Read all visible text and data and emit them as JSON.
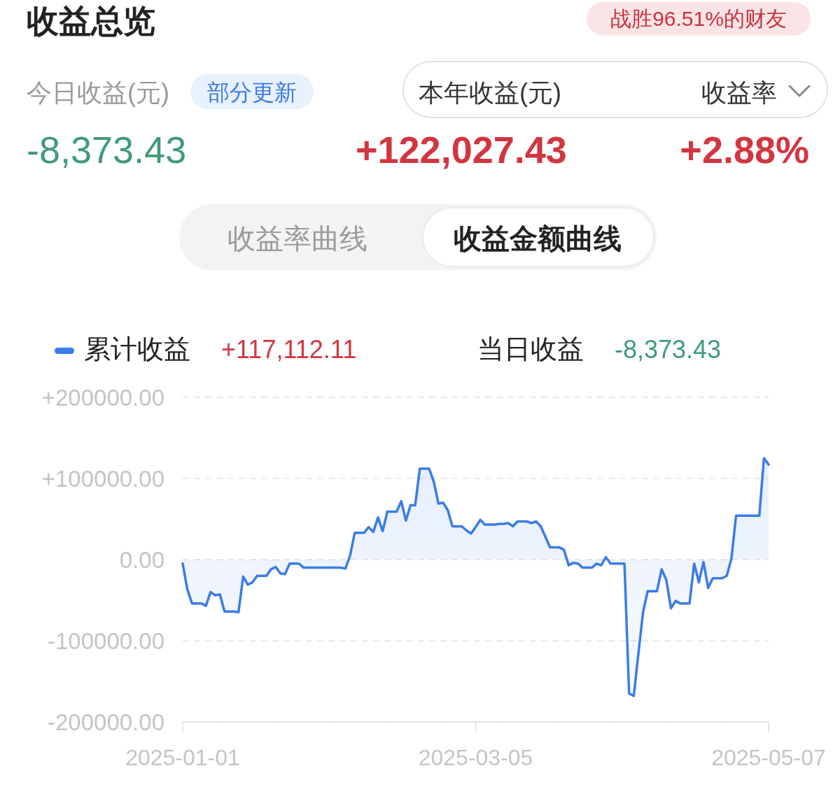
{
  "chart_data": {
    "type": "area",
    "title": "收益总览",
    "annotations": [
      "战胜96.51%的财友",
      "今日收益(元)",
      "部分更新",
      "本年收益(元)",
      "收益率",
      "-8,373.43",
      "+122,027.43",
      "+2.88%",
      "收益率曲线",
      "收益金额曲线",
      "+117,112.11",
      "当日收益",
      "-8,373.43"
    ],
    "x": [
      "2025-01-01",
      "2025-01-02",
      "2025-01-03",
      "2025-01-05",
      "2025-01-06",
      "2025-01-07",
      "2025-01-08",
      "2025-01-09",
      "2025-01-10",
      "2025-01-12",
      "2025-01-13",
      "2025-01-14",
      "2025-01-15",
      "2025-01-16",
      "2025-01-17",
      "2025-01-19",
      "2025-01-20",
      "2025-01-21",
      "2025-01-22",
      "2025-01-23",
      "2025-01-24",
      "2025-01-26",
      "2025-01-27",
      "2025-02-04",
      "2025-02-05",
      "2025-02-06",
      "2025-02-07",
      "2025-02-09",
      "2025-02-10",
      "2025-02-11",
      "2025-02-12",
      "2025-02-13",
      "2025-02-14",
      "2025-02-16",
      "2025-02-17",
      "2025-02-18",
      "2025-02-19",
      "2025-02-20",
      "2025-02-21",
      "2025-02-23",
      "2025-02-24",
      "2025-02-25",
      "2025-02-26",
      "2025-02-27",
      "2025-02-28",
      "2025-03-02",
      "2025-03-03",
      "2025-03-04",
      "2025-03-05",
      "2025-03-06",
      "2025-03-07",
      "2025-03-09",
      "2025-03-10",
      "2025-03-11",
      "2025-03-12",
      "2025-03-13",
      "2025-03-14",
      "2025-03-16",
      "2025-03-17",
      "2025-03-18",
      "2025-03-19",
      "2025-03-20",
      "2025-03-21",
      "2025-03-23",
      "2025-03-24",
      "2025-03-25",
      "2025-03-26",
      "2025-03-27",
      "2025-03-28",
      "2025-03-30",
      "2025-03-31",
      "2025-04-01",
      "2025-04-02",
      "2025-04-03",
      "2025-04-06",
      "2025-04-07",
      "2025-04-08",
      "2025-04-09",
      "2025-04-10",
      "2025-04-11",
      "2025-04-13",
      "2025-04-14",
      "2025-04-15",
      "2025-04-16",
      "2025-04-17",
      "2025-04-18",
      "2025-04-20",
      "2025-04-21",
      "2025-04-22",
      "2025-04-23",
      "2025-04-24",
      "2025-04-25",
      "2025-04-27",
      "2025-04-28",
      "2025-04-29",
      "2025-04-30",
      "2025-05-05",
      "2025-05-06",
      "2025-05-07"
    ],
    "series": [
      {
        "name": "累计收益",
        "color": "#3a7ce8",
        "values": [
          -5000,
          -37000,
          -54000,
          -54000,
          -57000,
          -40000,
          -44000,
          -43000,
          -64000,
          -64000,
          -65000,
          -21000,
          -31000,
          -28000,
          -20000,
          -20000,
          -12000,
          -9000,
          -17000,
          -18000,
          -5000,
          -5000,
          -10000,
          -10000,
          -11000,
          5000,
          33000,
          33000,
          40000,
          34000,
          52000,
          35000,
          59000,
          59000,
          72000,
          48000,
          67000,
          67000,
          112000,
          112000,
          96000,
          69000,
          70000,
          61000,
          41000,
          41000,
          36000,
          32000,
          40000,
          49000,
          43000,
          43000,
          44000,
          44000,
          45000,
          41000,
          47000,
          47000,
          45000,
          47000,
          41000,
          28000,
          15000,
          15000,
          12000,
          -7000,
          -4000,
          -5000,
          -10000,
          -10000,
          -5000,
          -7000,
          3000,
          -5000,
          -5000,
          -165000,
          -168000,
          -116000,
          -65000,
          -39000,
          -39000,
          -12000,
          -25000,
          -60000,
          -51000,
          -54000,
          -54000,
          -5000,
          -28000,
          -3000,
          -35000,
          -23000,
          -23000,
          -20000,
          1000,
          54000,
          54000,
          125000,
          117112.11
        ]
      }
    ],
    "xlim": [
      "2025-01-01",
      "2025-05-07"
    ],
    "xticks": [
      {
        "value": "2025-01-01",
        "label": "2025-01-01"
      },
      {
        "value": "2025-03-05",
        "label": "2025-03-05"
      },
      {
        "value": "2025-05-07",
        "label": "2025-05-07"
      }
    ],
    "ylim": [
      -200000,
      200000
    ],
    "yticks": [
      {
        "value": 200000,
        "label": "+200000.00"
      },
      {
        "value": 100000,
        "label": "+100000.00"
      },
      {
        "value": 0,
        "label": "0.00"
      },
      {
        "value": -100000,
        "label": "-100000.00"
      },
      {
        "value": -200000,
        "label": "-200000.00"
      }
    ],
    "grid": "y",
    "legend": "top left",
    "line_style": "solid"
  }
}
